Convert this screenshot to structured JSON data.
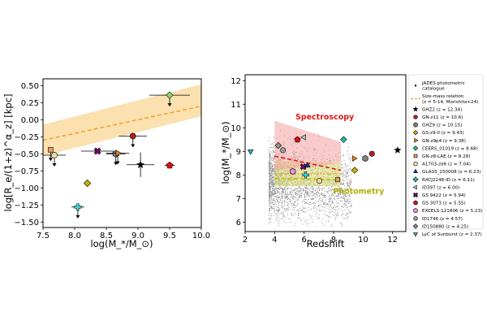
{
  "chart_data": [
    {
      "type": "scatter",
      "xlabel": "log(M_*/M_⊙)",
      "ylabel": "log[R_e/(1+z)^α_z] [kpc]",
      "xlim": [
        7.5,
        10.0
      ],
      "ylim": [
        -1.6,
        0.5
      ],
      "xticks": [
        "7.5",
        "8.0",
        "8.5",
        "9.0",
        "9.5",
        "10.0"
      ],
      "yticks": [
        "0.50",
        "0.25",
        "0.00",
        "−0.25",
        "−0.50",
        "−0.75",
        "−1.00",
        "−1.25",
        "−1.50"
      ],
      "relation": {
        "x": [
          7.5,
          10.0
        ],
        "y": [
          -0.3,
          0.2
        ],
        "band": [
          -0.53,
          -0.07,
          0.05,
          0.52
        ],
        "color": "#f0a020",
        "band_color": "#fbe0b0"
      },
      "points": [
        {
          "source": "GHZ2",
          "x": 9.04,
          "y": -0.66,
          "xerr": 0.22,
          "yerr": [
            0.18,
            0.18
          ],
          "marker": "star",
          "color": "#000000",
          "upper": false
        },
        {
          "source": "GN-z11",
          "x": 8.92,
          "y": -0.24,
          "xerr": 0.22,
          "yerr": [
            0.0,
            0.0
          ],
          "marker": "circle",
          "color": "#b02020",
          "upper": true
        },
        {
          "source": "GHZ9",
          "x": 8.65,
          "y": -0.5,
          "xerr": 0.15,
          "yerr": [
            0.0,
            0.0
          ],
          "marker": "hexagon",
          "color": "#808080",
          "upper": true
        },
        {
          "source": "GS-z9-0",
          "x": 8.2,
          "y": -0.93,
          "xerr": 0.0,
          "yerr": [
            0.0,
            0.0
          ],
          "marker": "diamond",
          "color": "#c8b400",
          "upper": false
        },
        {
          "source": "GN-z9p4",
          "x": 8.68,
          "y": -0.49,
          "xerr": 0.18,
          "yerr": [
            0.0,
            0.0
          ],
          "marker": "tri-right",
          "color": "#f08020",
          "upper": true
        },
        {
          "source": "CEERS_01019",
          "x": 9.5,
          "y": 0.36,
          "xerr": 0.32,
          "yerr": [
            0.0,
            0.0
          ],
          "marker": "diamond",
          "color": "#90d870",
          "upper": true
        },
        {
          "source": "GN-z8-LAE",
          "x": 7.62,
          "y": -0.44,
          "xerr": 0.0,
          "yerr": [
            0.0,
            0.0
          ],
          "marker": "square",
          "color": "#e8a060",
          "upper": true
        },
        {
          "source": "A1703-zd6",
          "x": 7.68,
          "y": -0.52,
          "xerr": 0.18,
          "yerr": [
            0.0,
            0.0
          ],
          "marker": "circle",
          "color": "#f2dca0",
          "upper": true
        },
        {
          "source": "GS 9422",
          "x": 8.36,
          "y": -0.46,
          "xerr": 0.26,
          "yerr": [
            0.0,
            0.0
          ],
          "marker": "cross",
          "color": "#800070",
          "upper": false
        },
        {
          "source": "GS 3073",
          "x": 9.5,
          "y": -0.67,
          "xerr": 0.08,
          "yerr": [
            0.0,
            0.0
          ],
          "marker": "pentagon",
          "color": "#e01010",
          "upper": false
        },
        {
          "source": "RXCJ2248-ID",
          "x": 8.05,
          "y": -1.28,
          "xerr": 0.1,
          "yerr": [
            0.04,
            0.04
          ],
          "marker": "plus",
          "color": "#40e0e0",
          "upper": true
        }
      ]
    },
    {
      "type": "scatter",
      "xlabel": "Redshift",
      "ylabel": "log(M_*/M_⊙)",
      "xlim": [
        2,
        13
      ],
      "ylim": [
        5.6,
        12.2
      ],
      "xticks": [
        "2",
        "4",
        "6",
        "8",
        "10",
        "12"
      ],
      "yticks": [
        "6",
        "7",
        "8",
        "9",
        "10",
        "11",
        "12"
      ],
      "annotations": [
        {
          "text": "Spectroscopy",
          "x": 7.4,
          "y": 10.35,
          "color": "#e01818"
        },
        {
          "text": "Photometry",
          "x": 9.7,
          "y": 7.2,
          "color": "#b0b000"
        }
      ],
      "legend": {
        "position": "right",
        "entries": [
          {
            "label": "JADES photometric catalogue",
            "marker": "dot",
            "color": "#000000"
          },
          {
            "label": "Size-mass relation (z = 5-14, Morishita+24)",
            "marker": "dash",
            "color": "#f0a020"
          },
          {
            "label": "GHZ2 (z = 12.34)",
            "marker": "star",
            "color": "#000000"
          },
          {
            "label": "GN-z11 (z = 10.6)",
            "marker": "circle",
            "color": "#b02020"
          },
          {
            "label": "GHZ9 (z = 10.15)",
            "marker": "hexagon",
            "color": "#808080"
          },
          {
            "label": "GS-z9-0 (z = 9.43)",
            "marker": "diamond",
            "color": "#c8b400"
          },
          {
            "label": "GN-z9p4 (z = 9.38)",
            "marker": "tri-right",
            "color": "#f08020"
          },
          {
            "label": "CEERS_01019 (z = 8.68)",
            "marker": "diamond",
            "color": "#20c0a0"
          },
          {
            "label": "GN-z8-LAE (z = 8.28)",
            "marker": "square",
            "color": "#e8a060"
          },
          {
            "label": "A1703-zd6 (z = 7.04)",
            "marker": "circle",
            "color": "#f2dca0"
          },
          {
            "label": "GLASS_150008 (z = 6.23)",
            "marker": "triangle",
            "color": "#1030c0"
          },
          {
            "label": "RXCJ2248-ID (z = 6.11)",
            "marker": "plus",
            "color": "#40e0e0"
          },
          {
            "label": "ID397 (z = 6.00)",
            "marker": "tri-left",
            "color": "#a8c8d0"
          },
          {
            "label": "GS 9422 (z = 5.94)",
            "marker": "cross",
            "color": "#800070"
          },
          {
            "label": "GS 3073 (z = 5.55)",
            "marker": "pentagon",
            "color": "#e01010"
          },
          {
            "label": "EXCELS-121806 (z = 5.23)",
            "marker": "hexagon",
            "color": "#e890e0"
          },
          {
            "label": "ID1746 (z = 4.57)",
            "marker": "circle",
            "color": "#a0a0a0"
          },
          {
            "label": "ID150880 (z = 4.25)",
            "marker": "diamond",
            "color": "#909090"
          },
          {
            "label": "LyC of Sunburst (z = 2.37)",
            "marker": "tri-down",
            "color": "#20b8c8"
          }
        ]
      },
      "bands": {
        "spectroscopy": {
          "color": "#f4a0a0",
          "x": [
            4.0,
            8.5
          ],
          "ylow": [
            8.2,
            8.5
          ],
          "yhigh": [
            10.3,
            9.4
          ],
          "median": [
            8.8,
            8.2
          ],
          "median_color": "#e01818"
        },
        "photometry": {
          "color": "#d8d870",
          "x": [
            4.0,
            8.5
          ],
          "ylow": [
            7.5,
            7.5
          ],
          "yhigh": [
            8.6,
            8.5
          ],
          "median": [
            7.85,
            7.8
          ],
          "median_color": "#c8c000"
        },
        "dashed_white": {
          "x": [
            4.0,
            8.5
          ],
          "y": 7.5,
          "color": "#ffffff"
        },
        "dashed_orange": {
          "x": [
            4.0,
            8.5
          ],
          "y": 8.05,
          "color": "#f0a020"
        }
      },
      "points": [
        {
          "source": "GHZ2",
          "x": 12.34,
          "y": 9.05,
          "marker": "star",
          "color": "#000000"
        },
        {
          "source": "GN-z11",
          "x": 10.6,
          "y": 8.9,
          "marker": "circle",
          "color": "#b02020"
        },
        {
          "source": "GHZ9",
          "x": 10.15,
          "y": 8.7,
          "marker": "hexagon",
          "color": "#808080"
        },
        {
          "source": "GS-z9-0",
          "x": 9.43,
          "y": 8.2,
          "marker": "diamond",
          "color": "#c8b400"
        },
        {
          "source": "GN-z9p4",
          "x": 9.38,
          "y": 8.7,
          "marker": "tri-right",
          "color": "#f08020"
        },
        {
          "source": "CEERS_01019",
          "x": 8.68,
          "y": 9.5,
          "marker": "diamond",
          "color": "#20c0a0"
        },
        {
          "source": "GN-z8-LAE",
          "x": 8.28,
          "y": 7.8,
          "marker": "square",
          "color": "#e8a060"
        },
        {
          "source": "A1703-zd6",
          "x": 7.04,
          "y": 7.75,
          "marker": "circle",
          "color": "#f2dca0"
        },
        {
          "source": "GLASS_150008",
          "x": 6.23,
          "y": 8.4,
          "marker": "triangle",
          "color": "#1030c0"
        },
        {
          "source": "RXCJ2248-ID",
          "x": 6.11,
          "y": 8.0,
          "marker": "plus",
          "color": "#40e0e0"
        },
        {
          "source": "ID397",
          "x": 6.0,
          "y": 9.6,
          "marker": "tri-left",
          "color": "#a8c8d0"
        },
        {
          "source": "GS 9422",
          "x": 5.94,
          "y": 8.35,
          "marker": "cross",
          "color": "#800070"
        },
        {
          "source": "GS 3073",
          "x": 5.55,
          "y": 9.5,
          "marker": "pentagon",
          "color": "#e01010"
        },
        {
          "source": "EXCELS-121806",
          "x": 5.23,
          "y": 8.15,
          "marker": "hexagon",
          "color": "#e890e0"
        },
        {
          "source": "ID1746",
          "x": 4.57,
          "y": 9.05,
          "marker": "circle",
          "color": "#a0a0a0"
        },
        {
          "source": "ID150880",
          "x": 4.25,
          "y": 9.25,
          "marker": "diamond",
          "color": "#909090"
        },
        {
          "source": "LyC of Sunburst",
          "x": 2.37,
          "y": 9.0,
          "marker": "tri-down",
          "color": "#20b8c8"
        }
      ]
    }
  ]
}
